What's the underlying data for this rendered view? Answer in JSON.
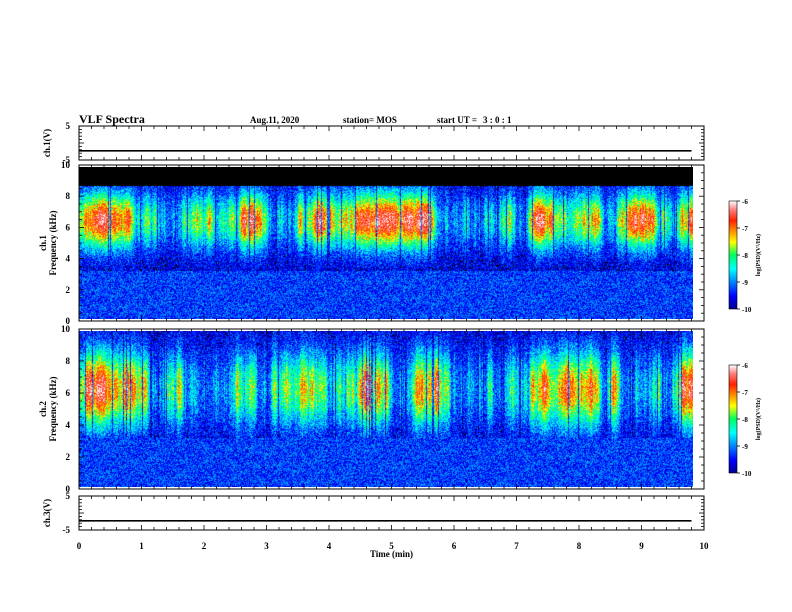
{
  "header": {
    "title": "VLF Spectra",
    "date": "Aug.11, 2020",
    "station": "station= MOS",
    "start_label": "start  UT  =",
    "start_time": "3 : 0 : 1"
  },
  "chart_data": [
    {
      "type": "line",
      "panel": "ch1-voltage",
      "ylabel": "ch.1(V)",
      "ylim": [
        -5,
        5
      ],
      "yticks": [
        5,
        -5
      ],
      "series": [
        {
          "x": [
            0,
            9.8
          ],
          "values": [
            -2.3,
            -2.3
          ]
        }
      ]
    },
    {
      "type": "heatmap",
      "panel": "ch1-spectrogram",
      "ylabel": "ch.1",
      "ylabel2": "Frequency  (kHz)",
      "ylim": [
        0,
        10
      ],
      "yticks": [
        0,
        2,
        4,
        6,
        8,
        10
      ],
      "xlim": [
        0,
        9.8
      ],
      "band_center_khz": 6.5,
      "band_halfwidth_khz": 1.8,
      "colorbar": {
        "label": "log(PSD)(V²/Hz)",
        "ticks": [
          -6,
          -7,
          -8,
          -9,
          -10
        ],
        "range": [
          -10,
          -6
        ]
      }
    },
    {
      "type": "heatmap",
      "panel": "ch2-spectrogram",
      "ylabel": "ch.2",
      "ylabel2": "Frequency  (kHz)",
      "ylim": [
        0,
        10
      ],
      "yticks": [
        0,
        2,
        4,
        6,
        8,
        10
      ],
      "xlim": [
        0,
        9.8
      ],
      "band_center_khz": 6.3,
      "band_halfwidth_khz": 2.4,
      "colorbar": {
        "label": "log(PSD)(V²/Hz)",
        "ticks": [
          -6,
          -7,
          -8,
          -9,
          -10
        ],
        "range": [
          -10,
          -6
        ]
      }
    },
    {
      "type": "line",
      "panel": "ch3-voltage",
      "ylabel": "ch.3(V)",
      "ylim": [
        -5,
        5
      ],
      "yticks": [
        5,
        -5
      ],
      "series": [
        {
          "x": [
            0,
            9.8
          ],
          "values": [
            -2.3,
            -2.3
          ]
        }
      ]
    }
  ],
  "x_axis": {
    "label": "Time  (min)",
    "ticks": [
      0,
      1,
      2,
      3,
      4,
      5,
      6,
      7,
      8,
      9,
      10
    ],
    "range": [
      0,
      10
    ]
  }
}
